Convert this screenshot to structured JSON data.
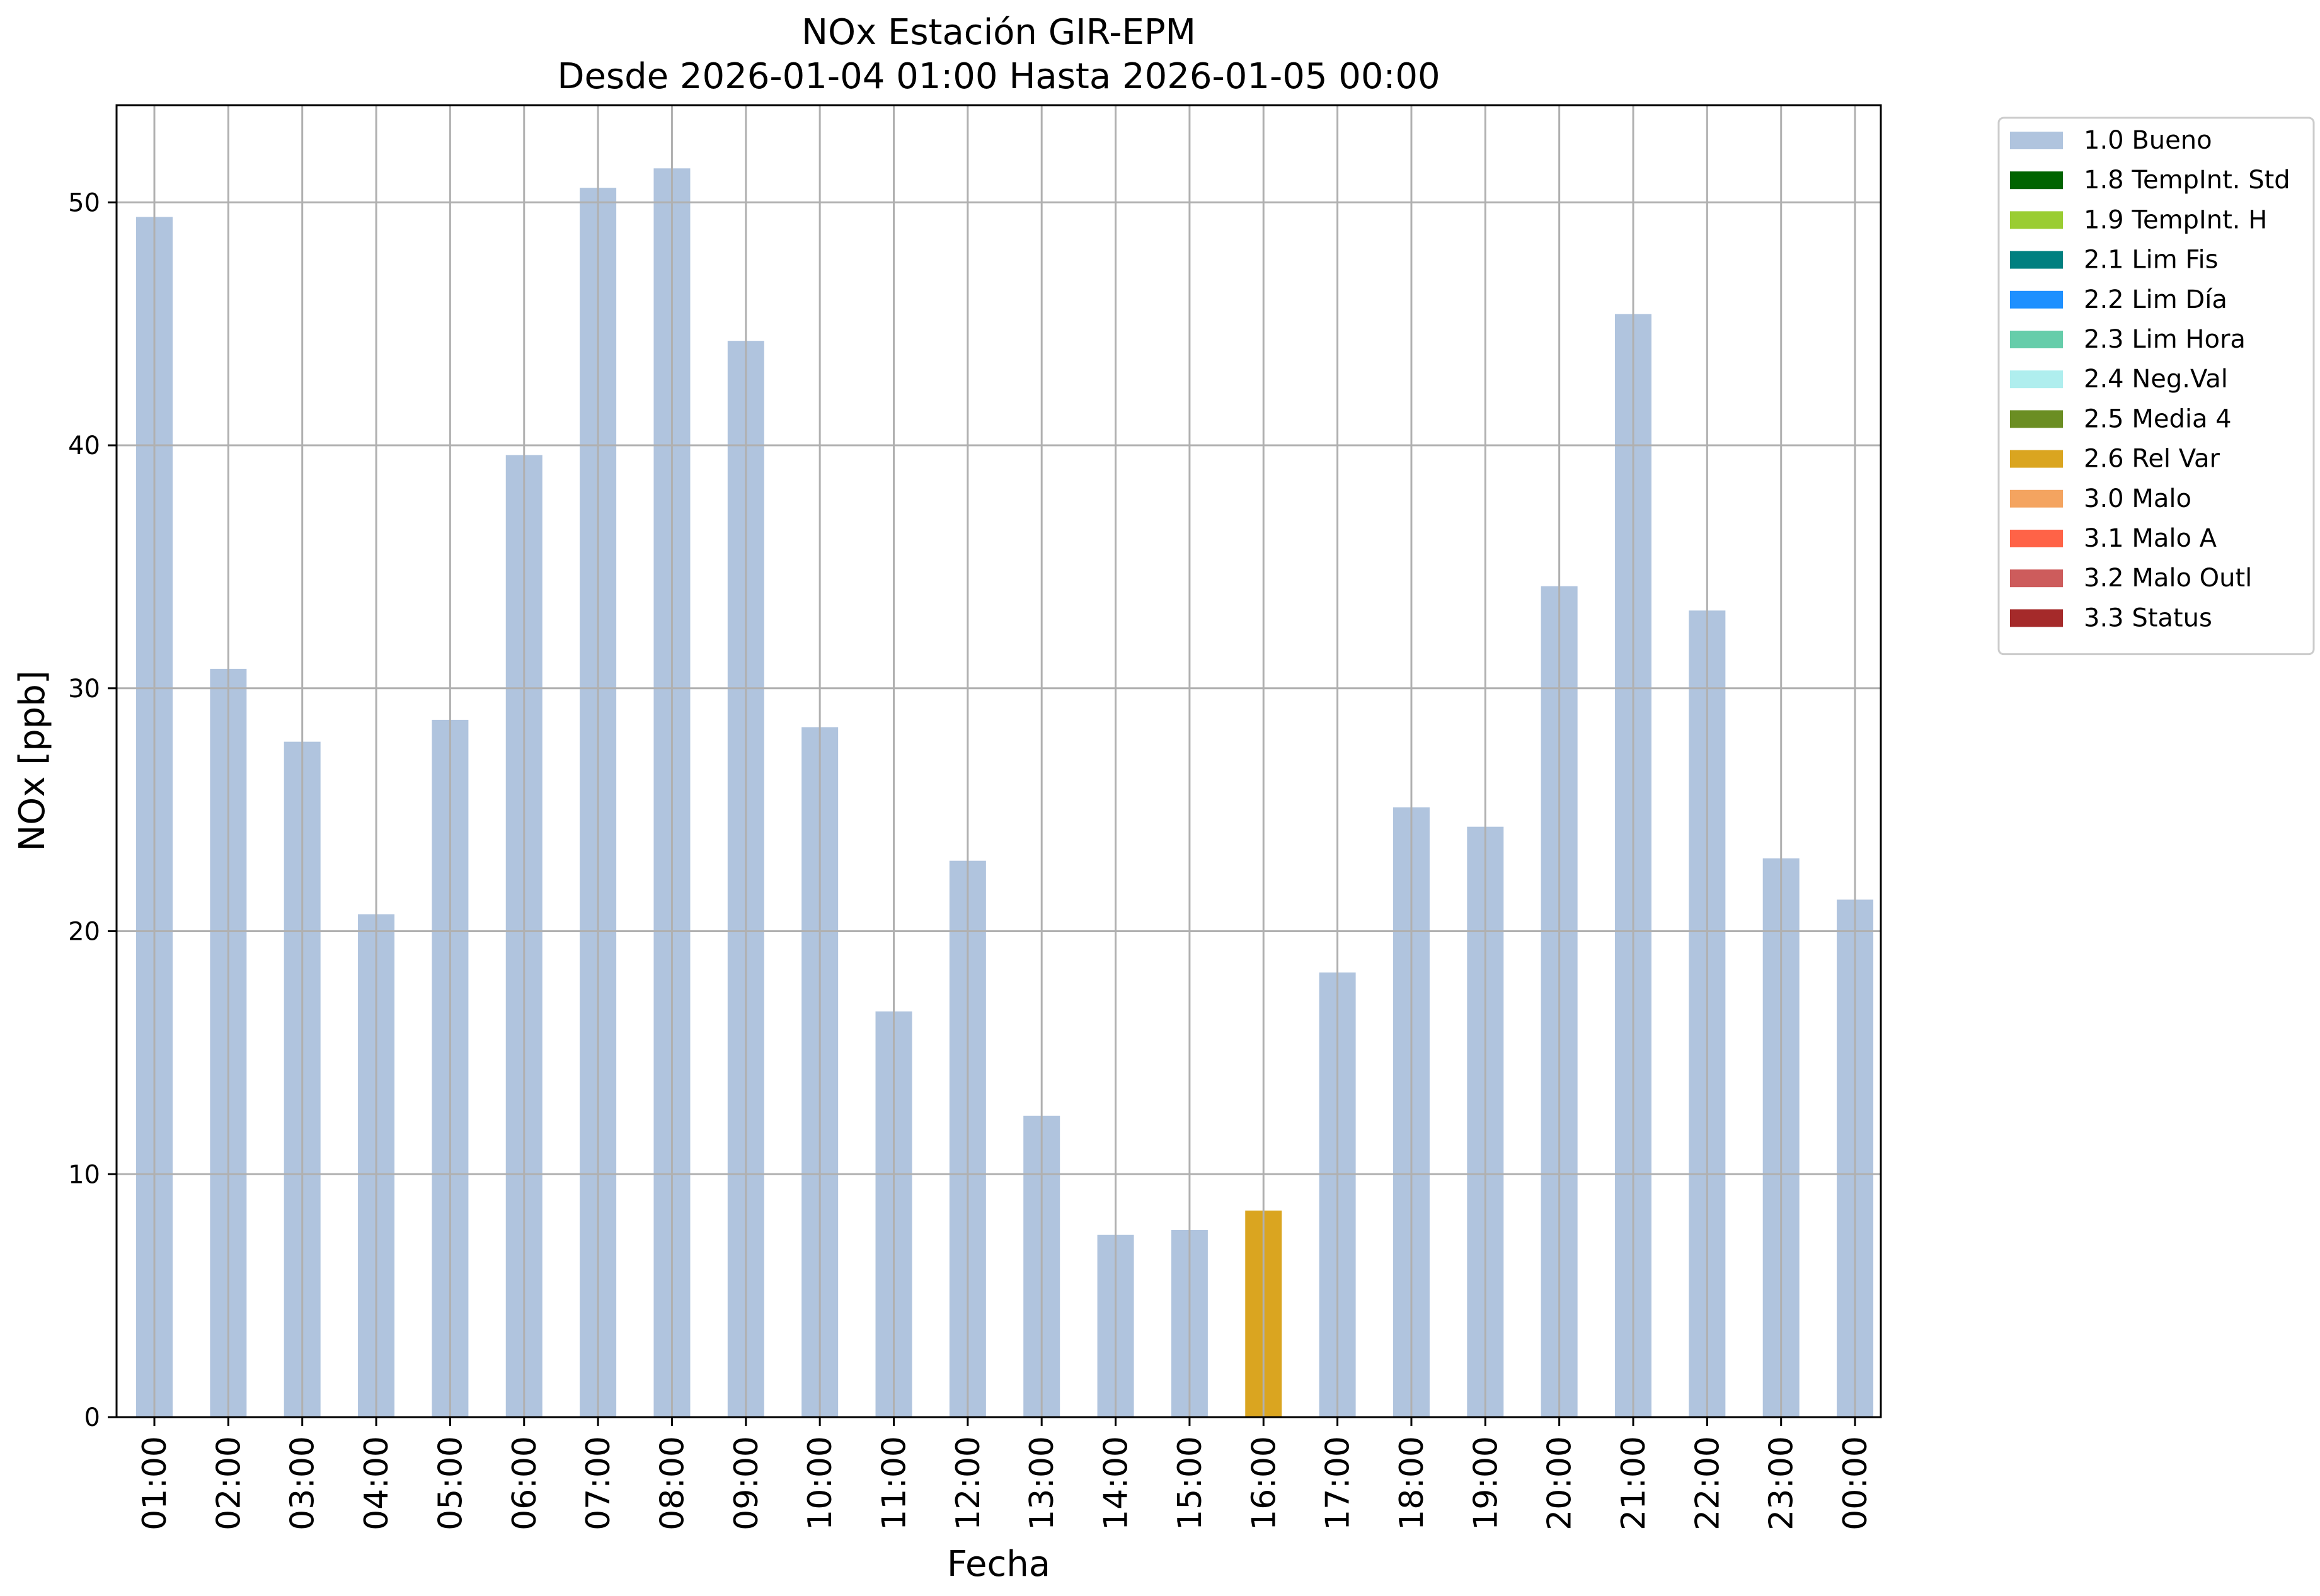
{
  "chart_data": {
    "type": "bar",
    "title": "NOx Estación GIR-EPM",
    "subtitle": "Desde 2026-01-04 01:00 Hasta 2026-01-05 00:00",
    "xlabel": "Fecha",
    "ylabel": "NOx [ppb]",
    "ylim": [
      0,
      54
    ],
    "yticks": [
      "0",
      "10",
      "20",
      "30",
      "40",
      "50"
    ],
    "grid": true,
    "legend_position": "outside-top-right",
    "categories": [
      "01:00",
      "02:00",
      "03:00",
      "04:00",
      "05:00",
      "06:00",
      "07:00",
      "08:00",
      "09:00",
      "10:00",
      "11:00",
      "12:00",
      "13:00",
      "14:00",
      "15:00",
      "16:00",
      "17:00",
      "18:00",
      "19:00",
      "20:00",
      "21:00",
      "22:00",
      "23:00",
      "00:00"
    ],
    "values": [
      49.4,
      30.8,
      27.8,
      20.7,
      28.7,
      39.6,
      50.6,
      51.4,
      44.3,
      28.4,
      16.7,
      22.9,
      12.4,
      7.5,
      7.7,
      8.5,
      18.3,
      25.1,
      24.3,
      34.2,
      45.4,
      33.2,
      23.0,
      21.3
    ],
    "bar_flags": [
      "1.0 Bueno",
      "1.0 Bueno",
      "1.0 Bueno",
      "1.0 Bueno",
      "1.0 Bueno",
      "1.0 Bueno",
      "1.0 Bueno",
      "1.0 Bueno",
      "1.0 Bueno",
      "1.0 Bueno",
      "1.0 Bueno",
      "1.0 Bueno",
      "1.0 Bueno",
      "1.0 Bueno",
      "1.0 Bueno",
      "2.6 Rel Var",
      "1.0 Bueno",
      "1.0 Bueno",
      "1.0 Bueno",
      "1.0 Bueno",
      "1.0 Bueno",
      "1.0 Bueno",
      "1.0 Bueno",
      "1.0 Bueno"
    ],
    "legend": [
      {
        "label": "1.0 Bueno",
        "color": "#b0c4de"
      },
      {
        "label": "1.8 TempInt. Std",
        "color": "#006400"
      },
      {
        "label": "1.9 TempInt. H",
        "color": "#9acd32"
      },
      {
        "label": "2.1 Lim Fis",
        "color": "#008080"
      },
      {
        "label": "2.2 Lim Día",
        "color": "#1e90ff"
      },
      {
        "label": "2.3 Lim Hora",
        "color": "#66cdaa"
      },
      {
        "label": "2.4 Neg.Val",
        "color": "#afeeee"
      },
      {
        "label": "2.5 Media 4",
        "color": "#6b8e23"
      },
      {
        "label": "2.6 Rel Var",
        "color": "#daa520"
      },
      {
        "label": "3.0 Malo",
        "color": "#f4a460"
      },
      {
        "label": "3.1 Malo A",
        "color": "#ff6347"
      },
      {
        "label": "3.2 Malo Outl",
        "color": "#cd5c5c"
      },
      {
        "label": "3.3 Status",
        "color": "#a52a2a"
      }
    ]
  }
}
